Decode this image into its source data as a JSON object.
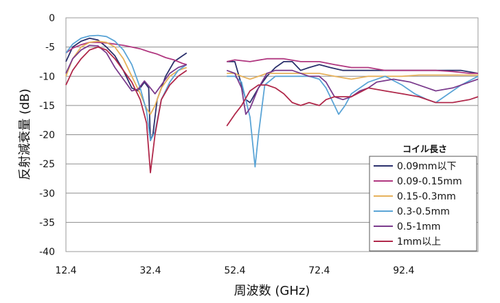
{
  "chart_data": {
    "type": "line",
    "xlabel": "周波数 (GHz)",
    "ylabel": "反射減衰量 (dB)",
    "xlim": [
      12.4,
      110
    ],
    "ylim": [
      -40,
      0
    ],
    "x_ticks": [
      12.4,
      32.4,
      52.4,
      72.4,
      92.4
    ],
    "y_ticks": [
      0,
      -5,
      -10,
      -15,
      -20,
      -25,
      -30,
      -35,
      -40
    ],
    "grid": "horizontal",
    "legend_title": "コイル長さ",
    "legend_position": "lower-right",
    "series": [
      {
        "name": "0.09mm以下",
        "color": "#2a2f6b",
        "segments": [
          [
            [
              12.4,
              -7.5
            ],
            [
              14,
              -5
            ],
            [
              16,
              -4
            ],
            [
              18,
              -3.5
            ],
            [
              20,
              -3.8
            ],
            [
              22,
              -5
            ],
            [
              24,
              -6.5
            ],
            [
              26,
              -9
            ],
            [
              28,
              -12
            ],
            [
              29.5,
              -12.5
            ],
            [
              31,
              -11
            ],
            [
              32,
              -12
            ],
            [
              32.4,
              -21
            ],
            [
              33,
              -20
            ],
            [
              34,
              -14
            ],
            [
              36,
              -10
            ],
            [
              38,
              -7.5
            ],
            [
              40,
              -6.5
            ],
            [
              41,
              -6
            ]
          ],
          [
            [
              50.5,
              -7.5
            ],
            [
              52.4,
              -7.5
            ],
            [
              55,
              -14
            ],
            [
              56,
              -14.5
            ],
            [
              58,
              -12
            ],
            [
              60,
              -10
            ],
            [
              62,
              -8.5
            ],
            [
              64,
              -7.5
            ],
            [
              66,
              -7.5
            ],
            [
              68,
              -9
            ],
            [
              70,
              -8.5
            ],
            [
              72.4,
              -8
            ],
            [
              75,
              -8.5
            ],
            [
              78,
              -9
            ],
            [
              82,
              -9
            ],
            [
              86,
              -9
            ],
            [
              90,
              -9
            ],
            [
              94,
              -9
            ],
            [
              98,
              -9
            ],
            [
              102,
              -9
            ],
            [
              106,
              -9
            ],
            [
              110,
              -9.5
            ]
          ]
        ]
      },
      {
        "name": "0.09-0.15mm",
        "color": "#b0367f",
        "segments": [
          [
            [
              12.4,
              -6
            ],
            [
              14,
              -5.2
            ],
            [
              16,
              -4.6
            ],
            [
              18,
              -4.2
            ],
            [
              20,
              -4.2
            ],
            [
              22,
              -4.3
            ],
            [
              24,
              -4.5
            ],
            [
              26,
              -4.7
            ],
            [
              28,
              -5
            ],
            [
              30,
              -5.3
            ],
            [
              32,
              -5.8
            ],
            [
              34,
              -6.2
            ],
            [
              36,
              -6.8
            ],
            [
              38,
              -7.2
            ],
            [
              40,
              -7.8
            ],
            [
              41,
              -8
            ]
          ],
          [
            [
              50.5,
              -7.5
            ],
            [
              52.4,
              -7.2
            ],
            [
              56,
              -7.5
            ],
            [
              60,
              -7
            ],
            [
              64,
              -7
            ],
            [
              68,
              -7.5
            ],
            [
              72.4,
              -7.5
            ],
            [
              76,
              -8
            ],
            [
              80,
              -8.5
            ],
            [
              84,
              -8.5
            ],
            [
              88,
              -9
            ],
            [
              92,
              -9
            ],
            [
              96,
              -9
            ],
            [
              100,
              -9
            ],
            [
              104,
              -9.2
            ],
            [
              108,
              -9.5
            ],
            [
              110,
              -9.5
            ]
          ]
        ]
      },
      {
        "name": "0.15-0.3mm",
        "color": "#e6b15a",
        "segments": [
          [
            [
              12.4,
              -10
            ],
            [
              14,
              -7
            ],
            [
              16,
              -5
            ],
            [
              18,
              -4.2
            ],
            [
              20,
              -4
            ],
            [
              22,
              -4.2
            ],
            [
              24,
              -5
            ],
            [
              26,
              -7
            ],
            [
              28,
              -10
            ],
            [
              30,
              -13
            ],
            [
              31.5,
              -15.5
            ],
            [
              32.4,
              -16.5
            ],
            [
              33.5,
              -15
            ],
            [
              35,
              -12
            ],
            [
              37,
              -10
            ],
            [
              39,
              -9
            ],
            [
              41,
              -8.5
            ]
          ],
          [
            [
              50.5,
              -9.5
            ],
            [
              52.4,
              -9.5
            ],
            [
              54,
              -10
            ],
            [
              56,
              -10.5
            ],
            [
              58,
              -10
            ],
            [
              60,
              -9.5
            ],
            [
              64,
              -9.5
            ],
            [
              68,
              -9.5
            ],
            [
              72.4,
              -9.5
            ],
            [
              76,
              -10
            ],
            [
              80,
              -10.5
            ],
            [
              84,
              -10
            ],
            [
              88,
              -10
            ],
            [
              92,
              -10
            ],
            [
              96,
              -9.8
            ],
            [
              100,
              -9.8
            ],
            [
              104,
              -9.8
            ],
            [
              108,
              -9.8
            ],
            [
              110,
              -9.8
            ]
          ]
        ]
      },
      {
        "name": "0.3-0.5mm",
        "color": "#5aa4d6",
        "segments": [
          [
            [
              12.4,
              -6
            ],
            [
              14,
              -4.5
            ],
            [
              16,
              -3.5
            ],
            [
              18,
              -3.1
            ],
            [
              20,
              -3
            ],
            [
              22,
              -3.2
            ],
            [
              24,
              -4
            ],
            [
              26,
              -5.5
            ],
            [
              28,
              -8
            ],
            [
              30,
              -12
            ],
            [
              31.5,
              -16
            ],
            [
              32.4,
              -21
            ],
            [
              33.5,
              -19.5
            ],
            [
              35,
              -14
            ],
            [
              37,
              -11
            ],
            [
              39,
              -9
            ],
            [
              41,
              -8
            ]
          ],
          [
            [
              50.5,
              -10
            ],
            [
              52.4,
              -10
            ],
            [
              54,
              -11
            ],
            [
              56,
              -17
            ],
            [
              57.2,
              -25.5
            ],
            [
              58,
              -20
            ],
            [
              59.5,
              -11.5
            ],
            [
              62,
              -10
            ],
            [
              66,
              -10
            ],
            [
              70,
              -10
            ],
            [
              72.4,
              -10.5
            ],
            [
              74,
              -12
            ],
            [
              76,
              -15
            ],
            [
              77,
              -16.5
            ],
            [
              78.5,
              -15
            ],
            [
              80,
              -13
            ],
            [
              84,
              -11
            ],
            [
              88,
              -10
            ],
            [
              92,
              -11.5
            ],
            [
              95,
              -13
            ],
            [
              98,
              -14
            ],
            [
              100,
              -14.5
            ],
            [
              102,
              -13.5
            ],
            [
              106,
              -11.5
            ],
            [
              110,
              -10
            ]
          ]
        ]
      },
      {
        "name": "0.5-1mm",
        "color": "#7a3a8c",
        "segments": [
          [
            [
              12.4,
              -9.5
            ],
            [
              14,
              -7
            ],
            [
              16,
              -5.5
            ],
            [
              18,
              -4.7
            ],
            [
              20,
              -4.8
            ],
            [
              22,
              -6
            ],
            [
              24,
              -8.5
            ],
            [
              26,
              -10.5
            ],
            [
              28,
              -12.5
            ],
            [
              29.5,
              -12.2
            ],
            [
              31,
              -10.8
            ],
            [
              32.4,
              -12
            ],
            [
              33.5,
              -13
            ],
            [
              35,
              -11.5
            ],
            [
              37,
              -9.5
            ],
            [
              39,
              -8.5
            ],
            [
              41,
              -8
            ]
          ],
          [
            [
              50.5,
              -9
            ],
            [
              52.4,
              -9.5
            ],
            [
              54,
              -12
            ],
            [
              55,
              -16.5
            ],
            [
              56,
              -15.5
            ],
            [
              58,
              -12
            ],
            [
              60,
              -9.5
            ],
            [
              62,
              -9
            ],
            [
              66,
              -9
            ],
            [
              70,
              -10
            ],
            [
              72.4,
              -10
            ],
            [
              74,
              -11
            ],
            [
              76,
              -13.5
            ],
            [
              78,
              -14
            ],
            [
              80,
              -13.5
            ],
            [
              82,
              -12.5
            ],
            [
              84,
              -12
            ],
            [
              86,
              -11
            ],
            [
              90,
              -10.5
            ],
            [
              94,
              -11
            ],
            [
              98,
              -12
            ],
            [
              100,
              -12.5
            ],
            [
              104,
              -12
            ],
            [
              108,
              -11
            ],
            [
              110,
              -10.5
            ]
          ]
        ]
      },
      {
        "name": "1mm以上",
        "color": "#b0284a",
        "segments": [
          [
            [
              12.4,
              -11.5
            ],
            [
              14,
              -9
            ],
            [
              16,
              -7
            ],
            [
              18,
              -5.5
            ],
            [
              20,
              -5
            ],
            [
              22,
              -5.5
            ],
            [
              24,
              -7
            ],
            [
              26,
              -9
            ],
            [
              28,
              -11
            ],
            [
              30,
              -14
            ],
            [
              31.5,
              -18
            ],
            [
              32.4,
              -26.5
            ],
            [
              33.5,
              -20
            ],
            [
              35,
              -14
            ],
            [
              37,
              -11.5
            ],
            [
              39,
              -10
            ],
            [
              41,
              -9
            ]
          ],
          [
            [
              50.5,
              -18.5
            ],
            [
              52.4,
              -16.5
            ],
            [
              54,
              -15
            ],
            [
              56,
              -12.5
            ],
            [
              58,
              -11.5
            ],
            [
              60,
              -11.5
            ],
            [
              62,
              -12
            ],
            [
              64,
              -13
            ],
            [
              66,
              -14.5
            ],
            [
              68,
              -15
            ],
            [
              70,
              -14.5
            ],
            [
              72.4,
              -15
            ],
            [
              74,
              -14
            ],
            [
              76,
              -13.5
            ],
            [
              80,
              -13.5
            ],
            [
              84,
              -12
            ],
            [
              88,
              -12.5
            ],
            [
              92,
              -13
            ],
            [
              96,
              -13.5
            ],
            [
              100,
              -14.5
            ],
            [
              104,
              -14.5
            ],
            [
              108,
              -14
            ],
            [
              110,
              -13.5
            ]
          ]
        ]
      }
    ]
  }
}
